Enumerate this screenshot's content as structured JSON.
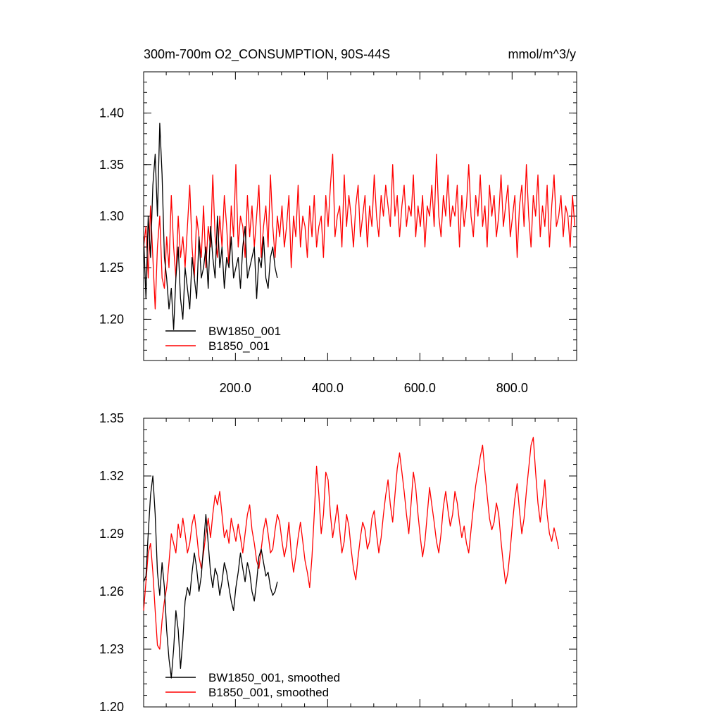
{
  "chart_data": [
    {
      "type": "line",
      "title": "300m-700m O2_CONSUMPTION, 90S-44S",
      "units": "mmol/m^3/y",
      "xlim": [
        1,
        940
      ],
      "ylim": [
        1.16,
        1.44
      ],
      "x_ticks": [
        200,
        400,
        600,
        800
      ],
      "x_tick_labels": [
        "200.0",
        "400.0",
        "600.0",
        "800.0"
      ],
      "y_ticks": [
        1.2,
        1.25,
        1.3,
        1.35,
        1.4
      ],
      "y_tick_labels": [
        "1.20",
        "1.25",
        "1.30",
        "1.35",
        "1.40"
      ],
      "legend": {
        "position": "bottom-left",
        "entries": [
          "BW1850_001",
          "B1850_001"
        ]
      },
      "series": [
        {
          "name": "BW1850_001",
          "color": "#000000",
          "x_start": 1,
          "x_step": 5,
          "values": [
            1.28,
            1.22,
            1.3,
            1.26,
            1.33,
            1.36,
            1.3,
            1.39,
            1.34,
            1.26,
            1.24,
            1.21,
            1.23,
            1.19,
            1.24,
            1.27,
            1.22,
            1.2,
            1.25,
            1.23,
            1.21,
            1.26,
            1.24,
            1.22,
            1.28,
            1.24,
            1.25,
            1.27,
            1.23,
            1.29,
            1.26,
            1.24,
            1.3,
            1.25,
            1.27,
            1.23,
            1.26,
            1.25,
            1.28,
            1.24,
            1.25,
            1.26,
            1.23,
            1.27,
            1.29,
            1.24,
            1.25,
            1.26,
            1.27,
            1.22,
            1.26,
            1.25,
            1.28,
            1.24,
            1.23,
            1.26,
            1.27,
            1.25,
            1.24
          ]
        },
        {
          "name": "B1850_001",
          "color": "#ff0000",
          "x_start": 1,
          "x_step": 5,
          "values": [
            1.27,
            1.29,
            1.24,
            1.31,
            1.26,
            1.21,
            1.27,
            1.3,
            1.24,
            1.23,
            1.28,
            1.25,
            1.32,
            1.27,
            1.24,
            1.3,
            1.26,
            1.28,
            1.25,
            1.29,
            1.33,
            1.27,
            1.24,
            1.3,
            1.28,
            1.26,
            1.31,
            1.25,
            1.29,
            1.27,
            1.34,
            1.28,
            1.26,
            1.3,
            1.27,
            1.32,
            1.29,
            1.25,
            1.31,
            1.28,
            1.35,
            1.27,
            1.3,
            1.29,
            1.26,
            1.32,
            1.28,
            1.31,
            1.27,
            1.3,
            1.33,
            1.26,
            1.29,
            1.31,
            1.27,
            1.34,
            1.29,
            1.26,
            1.3,
            1.28,
            1.31,
            1.27,
            1.29,
            1.32,
            1.25,
            1.3,
            1.28,
            1.33,
            1.27,
            1.3,
            1.29,
            1.26,
            1.31,
            1.28,
            1.32,
            1.27,
            1.29,
            1.3,
            1.26,
            1.32,
            1.29,
            1.33,
            1.36,
            1.28,
            1.3,
            1.31,
            1.27,
            1.34,
            1.29,
            1.32,
            1.3,
            1.27,
            1.31,
            1.33,
            1.28,
            1.3,
            1.32,
            1.27,
            1.31,
            1.29,
            1.34,
            1.3,
            1.28,
            1.32,
            1.3,
            1.33,
            1.31,
            1.29,
            1.35,
            1.3,
            1.32,
            1.28,
            1.31,
            1.33,
            1.29,
            1.31,
            1.3,
            1.34,
            1.28,
            1.31,
            1.29,
            1.32,
            1.27,
            1.31,
            1.3,
            1.33,
            1.29,
            1.36,
            1.3,
            1.28,
            1.32,
            1.3,
            1.34,
            1.29,
            1.31,
            1.3,
            1.33,
            1.27,
            1.32,
            1.29,
            1.31,
            1.35,
            1.3,
            1.28,
            1.32,
            1.3,
            1.34,
            1.29,
            1.31,
            1.27,
            1.33,
            1.3,
            1.32,
            1.28,
            1.3,
            1.34,
            1.29,
            1.31,
            1.33,
            1.28,
            1.3,
            1.32,
            1.26,
            1.31,
            1.33,
            1.29,
            1.35,
            1.3,
            1.27,
            1.32,
            1.3,
            1.34,
            1.28,
            1.31,
            1.29,
            1.33,
            1.27,
            1.31,
            1.34,
            1.29,
            1.3,
            1.32,
            1.28,
            1.31,
            1.3,
            1.27,
            1.32,
            1.29
          ]
        }
      ]
    },
    {
      "type": "line",
      "title": "",
      "xlim": [
        1,
        940
      ],
      "ylim": [
        1.2,
        1.35
      ],
      "y_ticks": [
        1.2,
        1.23,
        1.26,
        1.29,
        1.32,
        1.35
      ],
      "y_tick_labels": [
        "1.20",
        "1.23",
        "1.26",
        "1.29",
        "1.32",
        "1.35"
      ],
      "legend": {
        "position": "bottom-left",
        "entries": [
          "BW1850_001, smoothed",
          "B1850_001, smoothed"
        ]
      },
      "series": [
        {
          "name": "BW1850_001, smoothed",
          "color": "#000000",
          "x_start": 1,
          "x_step": 5,
          "values": [
            1.265,
            1.268,
            1.29,
            1.31,
            1.32,
            1.3,
            1.27,
            1.258,
            1.275,
            1.262,
            1.24,
            1.225,
            1.215,
            1.23,
            1.25,
            1.24,
            1.22,
            1.235,
            1.255,
            1.262,
            1.258,
            1.27,
            1.28,
            1.272,
            1.26,
            1.268,
            1.284,
            1.3,
            1.285,
            1.27,
            1.262,
            1.272,
            1.268,
            1.258,
            1.265,
            1.275,
            1.27,
            1.262,
            1.255,
            1.25,
            1.262,
            1.27,
            1.28,
            1.272,
            1.265,
            1.275,
            1.27,
            1.26,
            1.255,
            1.265,
            1.278,
            1.282,
            1.275,
            1.268,
            1.27,
            1.262,
            1.258,
            1.26,
            1.265
          ]
        },
        {
          "name": "B1850_001, smoothed",
          "color": "#ff0000",
          "x_start": 1,
          "x_step": 5,
          "values": [
            1.25,
            1.265,
            1.28,
            1.285,
            1.27,
            1.25,
            1.232,
            1.23,
            1.245,
            1.255,
            1.262,
            1.275,
            1.29,
            1.285,
            1.28,
            1.295,
            1.288,
            1.298,
            1.29,
            1.28,
            1.285,
            1.295,
            1.3,
            1.29,
            1.278,
            1.272,
            1.28,
            1.29,
            1.298,
            1.288,
            1.3,
            1.31,
            1.305,
            1.312,
            1.3,
            1.288,
            1.292,
            1.285,
            1.298,
            1.292,
            1.286,
            1.295,
            1.288,
            1.28,
            1.29,
            1.3,
            1.305,
            1.292,
            1.285,
            1.276,
            1.272,
            1.282,
            1.292,
            1.298,
            1.29,
            1.28,
            1.282,
            1.292,
            1.3,
            1.296,
            1.286,
            1.278,
            1.284,
            1.296,
            1.28,
            1.27,
            1.278,
            1.288,
            1.296,
            1.286,
            1.276,
            1.27,
            1.262,
            1.278,
            1.3,
            1.325,
            1.31,
            1.29,
            1.3,
            1.322,
            1.318,
            1.3,
            1.288,
            1.296,
            1.305,
            1.292,
            1.28,
            1.286,
            1.3,
            1.294,
            1.282,
            1.272,
            1.266,
            1.278,
            1.288,
            1.296,
            1.292,
            1.282,
            1.286,
            1.298,
            1.302,
            1.29,
            1.28,
            1.288,
            1.3,
            1.31,
            1.318,
            1.305,
            1.296,
            1.31,
            1.324,
            1.332,
            1.322,
            1.312,
            1.3,
            1.29,
            1.306,
            1.322,
            1.314,
            1.3,
            1.288,
            1.278,
            1.286,
            1.3,
            1.314,
            1.305,
            1.296,
            1.286,
            1.28,
            1.29,
            1.304,
            1.312,
            1.302,
            1.294,
            1.3,
            1.312,
            1.306,
            1.296,
            1.288,
            1.294,
            1.285,
            1.28,
            1.292,
            1.304,
            1.315,
            1.322,
            1.33,
            1.336,
            1.322,
            1.31,
            1.298,
            1.292,
            1.296,
            1.306,
            1.3,
            1.286,
            1.274,
            1.264,
            1.27,
            1.282,
            1.296,
            1.308,
            1.316,
            1.302,
            1.29,
            1.298,
            1.312,
            1.324,
            1.336,
            1.34,
            1.322,
            1.306,
            1.296,
            1.306,
            1.318,
            1.3,
            1.29,
            1.286,
            1.293,
            1.288,
            1.282
          ]
        }
      ]
    }
  ]
}
